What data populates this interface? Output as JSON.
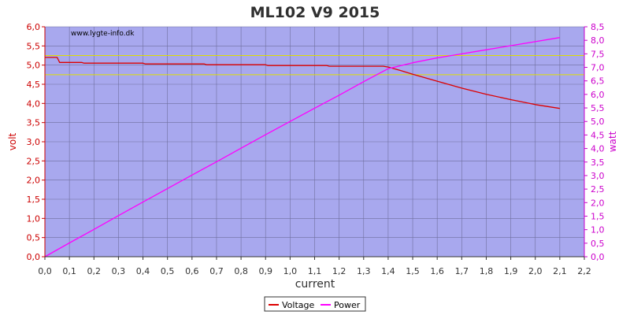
{
  "chart_data": {
    "type": "line",
    "title": "ML102 V9 2015",
    "watermark": "www.lygte-info.dk",
    "xlabel": "current",
    "ylabel_left": "volt",
    "ylabel_right": "watt",
    "xlim": [
      0.0,
      2.2
    ],
    "ylim_left": [
      0.0,
      6.0
    ],
    "ylim_right": [
      0.0,
      8.5
    ],
    "x_ticks": [
      "0,0",
      "0,1",
      "0,2",
      "0,3",
      "0,4",
      "0,5",
      "0,6",
      "0,7",
      "0,8",
      "0,9",
      "1,0",
      "1,1",
      "1,2",
      "1,3",
      "1,4",
      "1,5",
      "1,6",
      "1,7",
      "1,8",
      "1,9",
      "2,0",
      "2,1",
      "2,2"
    ],
    "y_left_ticks": [
      "0,0",
      "0,5",
      "1,0",
      "1,5",
      "2,0",
      "2,5",
      "3,0",
      "3,5",
      "4,0",
      "4,5",
      "5,0",
      "5,5",
      "6,0"
    ],
    "y_right_ticks": [
      "0,0",
      "0,5",
      "1,0",
      "1,5",
      "2,0",
      "2,5",
      "3,0",
      "3,5",
      "4,0",
      "4,5",
      "5,0",
      "5,5",
      "6,0",
      "6,5",
      "7,0",
      "7,5",
      "8,0",
      "8,5"
    ],
    "grid": true,
    "reference_lines_left": [
      5.25,
      4.75
    ],
    "legend_position": "bottom-center",
    "colors": {
      "plot_background": "#a8a8ee",
      "grid": "#6f6f9f",
      "voltage": "#dd0000",
      "power": "#ff00ff",
      "reference": "#dddd00",
      "left_axis": "#cc0000",
      "right_axis": "#cc00cc",
      "x_axis": "#333333"
    },
    "series": [
      {
        "name": "Voltage",
        "axis": "left",
        "points": [
          [
            0.0,
            5.2
          ],
          [
            0.05,
            5.2
          ],
          [
            0.06,
            5.07
          ],
          [
            0.15,
            5.07
          ],
          [
            0.16,
            5.05
          ],
          [
            0.4,
            5.05
          ],
          [
            0.41,
            5.03
          ],
          [
            0.65,
            5.03
          ],
          [
            0.66,
            5.01
          ],
          [
            0.9,
            5.01
          ],
          [
            0.91,
            4.99
          ],
          [
            1.15,
            4.99
          ],
          [
            1.16,
            4.97
          ],
          [
            1.38,
            4.97
          ],
          [
            1.4,
            4.95
          ],
          [
            1.45,
            4.86
          ],
          [
            1.5,
            4.76
          ],
          [
            1.6,
            4.58
          ],
          [
            1.7,
            4.4
          ],
          [
            1.8,
            4.24
          ],
          [
            1.9,
            4.1
          ],
          [
            2.0,
            3.97
          ],
          [
            2.1,
            3.87
          ]
        ]
      },
      {
        "name": "Power",
        "axis": "right",
        "points": [
          [
            0.0,
            0.0
          ],
          [
            0.1,
            0.51
          ],
          [
            0.2,
            1.01
          ],
          [
            0.3,
            1.52
          ],
          [
            0.4,
            2.02
          ],
          [
            0.5,
            2.52
          ],
          [
            0.6,
            3.02
          ],
          [
            0.7,
            3.51
          ],
          [
            0.8,
            4.01
          ],
          [
            0.9,
            4.51
          ],
          [
            1.0,
            5.0
          ],
          [
            1.1,
            5.49
          ],
          [
            1.2,
            5.97
          ],
          [
            1.3,
            6.47
          ],
          [
            1.4,
            6.95
          ],
          [
            1.5,
            7.17
          ],
          [
            1.6,
            7.35
          ],
          [
            1.7,
            7.5
          ],
          [
            1.8,
            7.65
          ],
          [
            1.9,
            7.8
          ],
          [
            2.0,
            7.95
          ],
          [
            2.1,
            8.1
          ]
        ]
      }
    ]
  }
}
